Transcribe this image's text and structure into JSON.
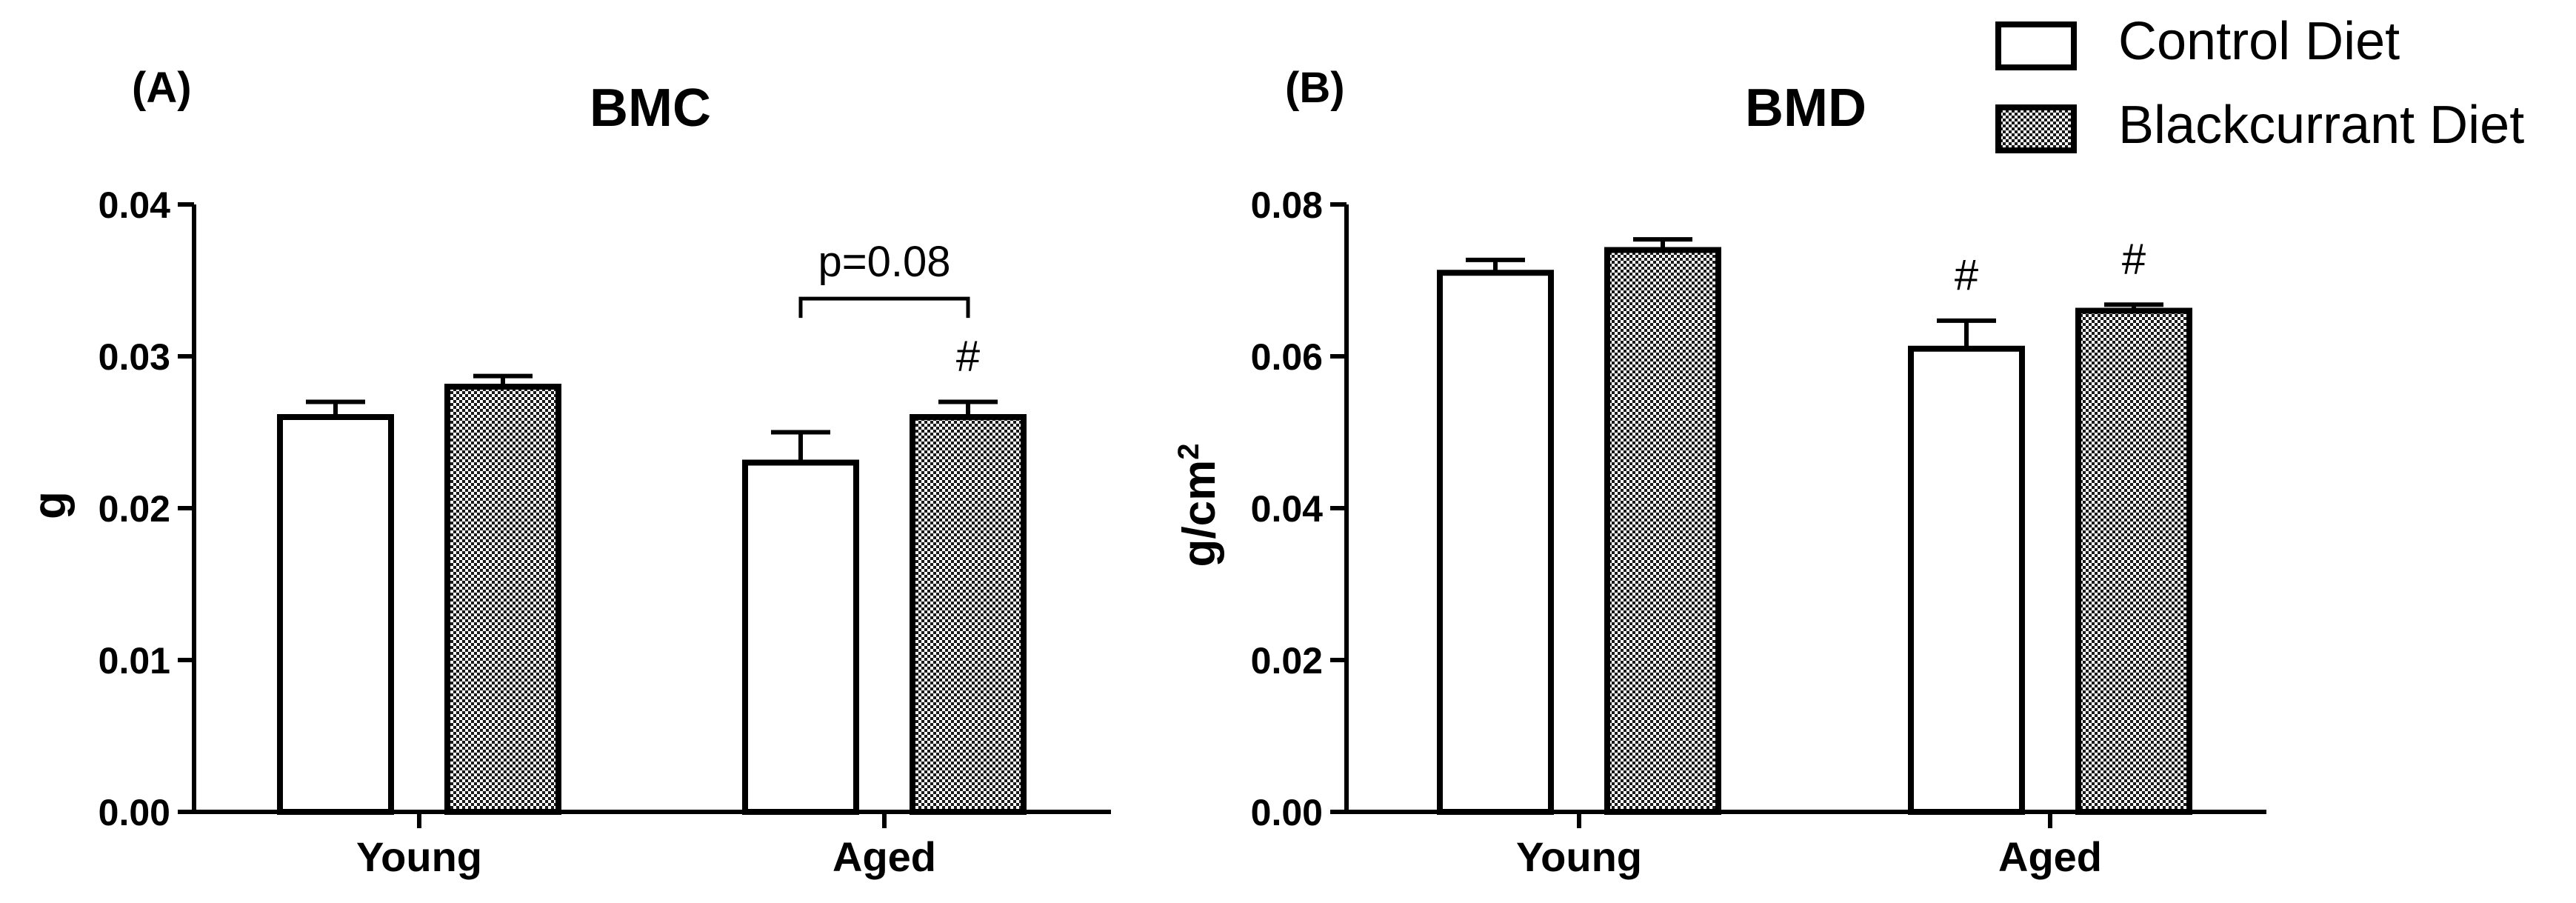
{
  "legend": {
    "entries": [
      {
        "label": "Control Diet",
        "fill": "open"
      },
      {
        "label": "Blackcurrant Diet",
        "fill": "checkered"
      }
    ]
  },
  "colors": {
    "ink": "#000000",
    "background": "#ffffff",
    "pattern_dark": "#1a1a1a",
    "pattern_light": "#ffffff"
  },
  "chart_data": [
    {
      "panel_label": "(A)",
      "type": "bar",
      "title": "BMC",
      "xlabel": "",
      "ylabel": "g",
      "ylabel_sup": "",
      "ylim": [
        0,
        0.04
      ],
      "yticks": [
        "0.00",
        "0.01",
        "0.02",
        "0.03",
        "0.04"
      ],
      "categories": [
        "Young",
        "Aged"
      ],
      "series": [
        {
          "name": "Control Diet",
          "values": [
            0.026,
            0.023
          ],
          "errors": [
            0.001,
            0.002
          ]
        },
        {
          "name": "Blackcurrant Diet",
          "values": [
            0.028,
            0.026
          ],
          "errors": [
            0.0007,
            0.001
          ]
        }
      ],
      "annotations": [
        {
          "text": "#",
          "category": 1,
          "series": 1
        }
      ],
      "brackets": [
        {
          "text": "p=0.08",
          "category": 1,
          "from_series": 0,
          "to_series": 1,
          "at_value": 0.0338
        }
      ]
    },
    {
      "panel_label": "(B)",
      "type": "bar",
      "title": "BMD",
      "xlabel": "",
      "ylabel": "g/cm",
      "ylabel_sup": "2",
      "ylim": [
        0,
        0.08
      ],
      "yticks": [
        "0.00",
        "0.02",
        "0.04",
        "0.06",
        "0.08"
      ],
      "categories": [
        "Young",
        "Aged"
      ],
      "series": [
        {
          "name": "Control Diet",
          "values": [
            0.071,
            0.061
          ],
          "errors": [
            0.0017,
            0.0037
          ]
        },
        {
          "name": "Blackcurrant Diet",
          "values": [
            0.074,
            0.066
          ],
          "errors": [
            0.0014,
            0.0008
          ]
        }
      ],
      "annotations": [
        {
          "text": "#",
          "category": 1,
          "series": 0
        },
        {
          "text": "#",
          "category": 1,
          "series": 1
        }
      ],
      "brackets": []
    }
  ]
}
